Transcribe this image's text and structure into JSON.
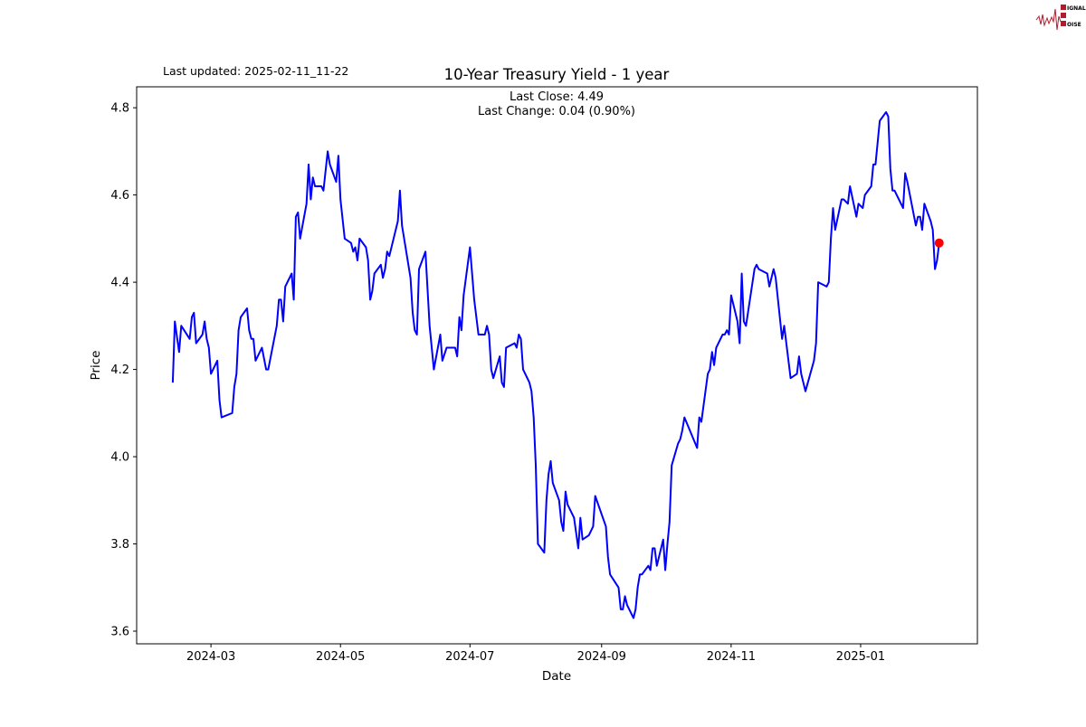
{
  "logo": {
    "text": "SIGNAL 2 NOISE",
    "color": "#b01c2e"
  },
  "last_updated": "Last updated: 2025-02-11_11-22",
  "chart_data": {
    "type": "line",
    "title": "10-Year Treasury Yield - 1 year",
    "xlabel": "Date",
    "ylabel": "Price",
    "annotation": {
      "last_close": "Last Close: 4.49",
      "last_change": "Last Change: 0.04 (0.90%)"
    },
    "xlim": [
      "2024-01-26",
      "2025-02-25"
    ],
    "ylim": [
      3.571,
      4.848
    ],
    "x_ticks": [
      "2024-03",
      "2024-05",
      "2024-07",
      "2024-09",
      "2024-11",
      "2025-01"
    ],
    "y_ticks": [
      "3.6",
      "3.8",
      "4.0",
      "4.2",
      "4.4",
      "4.6",
      "4.8"
    ],
    "grid": false,
    "line_color": "#0000ff",
    "marker": {
      "date": "2025-02-07",
      "value": 4.49,
      "color": "#ff0000"
    },
    "points": [
      [
        "2024-02-12",
        4.17
      ],
      [
        "2024-02-13",
        4.31
      ],
      [
        "2024-02-15",
        4.24
      ],
      [
        "2024-02-16",
        4.3
      ],
      [
        "2024-02-20",
        4.27
      ],
      [
        "2024-02-21",
        4.32
      ],
      [
        "2024-02-22",
        4.33
      ],
      [
        "2024-02-23",
        4.26
      ],
      [
        "2024-02-26",
        4.28
      ],
      [
        "2024-02-27",
        4.31
      ],
      [
        "2024-02-28",
        4.27
      ],
      [
        "2024-02-29",
        4.25
      ],
      [
        "2024-03-01",
        4.19
      ],
      [
        "2024-03-04",
        4.22
      ],
      [
        "2024-03-05",
        4.13
      ],
      [
        "2024-03-06",
        4.09
      ],
      [
        "2024-03-11",
        4.1
      ],
      [
        "2024-03-12",
        4.16
      ],
      [
        "2024-03-13",
        4.19
      ],
      [
        "2024-03-14",
        4.29
      ],
      [
        "2024-03-15",
        4.32
      ],
      [
        "2024-03-18",
        4.34
      ],
      [
        "2024-03-19",
        4.29
      ],
      [
        "2024-03-20",
        4.27
      ],
      [
        "2024-03-21",
        4.27
      ],
      [
        "2024-03-22",
        4.22
      ],
      [
        "2024-03-25",
        4.25
      ],
      [
        "2024-03-27",
        4.2
      ],
      [
        "2024-03-28",
        4.2
      ],
      [
        "2024-04-01",
        4.3
      ],
      [
        "2024-04-02",
        4.36
      ],
      [
        "2024-04-03",
        4.36
      ],
      [
        "2024-04-04",
        4.31
      ],
      [
        "2024-04-05",
        4.39
      ],
      [
        "2024-04-08",
        4.42
      ],
      [
        "2024-04-09",
        4.36
      ],
      [
        "2024-04-10",
        4.55
      ],
      [
        "2024-04-11",
        4.56
      ],
      [
        "2024-04-12",
        4.5
      ],
      [
        "2024-04-15",
        4.58
      ],
      [
        "2024-04-16",
        4.67
      ],
      [
        "2024-04-17",
        4.59
      ],
      [
        "2024-04-18",
        4.64
      ],
      [
        "2024-04-19",
        4.62
      ],
      [
        "2024-04-22",
        4.62
      ],
      [
        "2024-04-23",
        4.61
      ],
      [
        "2024-04-25",
        4.7
      ],
      [
        "2024-04-26",
        4.67
      ],
      [
        "2024-04-29",
        4.63
      ],
      [
        "2024-04-30",
        4.69
      ],
      [
        "2024-05-01",
        4.59
      ],
      [
        "2024-05-03",
        4.5
      ],
      [
        "2024-05-06",
        4.49
      ],
      [
        "2024-05-07",
        4.47
      ],
      [
        "2024-05-08",
        4.48
      ],
      [
        "2024-05-09",
        4.45
      ],
      [
        "2024-05-10",
        4.5
      ],
      [
        "2024-05-13",
        4.48
      ],
      [
        "2024-05-14",
        4.45
      ],
      [
        "2024-05-15",
        4.36
      ],
      [
        "2024-05-16",
        4.38
      ],
      [
        "2024-05-17",
        4.42
      ],
      [
        "2024-05-20",
        4.44
      ],
      [
        "2024-05-21",
        4.41
      ],
      [
        "2024-05-22",
        4.43
      ],
      [
        "2024-05-23",
        4.47
      ],
      [
        "2024-05-24",
        4.46
      ],
      [
        "2024-05-28",
        4.54
      ],
      [
        "2024-05-29",
        4.61
      ],
      [
        "2024-05-30",
        4.53
      ],
      [
        "2024-06-03",
        4.41
      ],
      [
        "2024-06-04",
        4.33
      ],
      [
        "2024-06-05",
        4.29
      ],
      [
        "2024-06-06",
        4.28
      ],
      [
        "2024-06-07",
        4.43
      ],
      [
        "2024-06-10",
        4.47
      ],
      [
        "2024-06-12",
        4.3
      ],
      [
        "2024-06-14",
        4.2
      ],
      [
        "2024-06-17",
        4.28
      ],
      [
        "2024-06-18",
        4.22
      ],
      [
        "2024-06-20",
        4.25
      ],
      [
        "2024-06-24",
        4.25
      ],
      [
        "2024-06-25",
        4.23
      ],
      [
        "2024-06-26",
        4.32
      ],
      [
        "2024-06-27",
        4.29
      ],
      [
        "2024-06-28",
        4.37
      ],
      [
        "2024-07-01",
        4.48
      ],
      [
        "2024-07-03",
        4.36
      ],
      [
        "2024-07-05",
        4.28
      ],
      [
        "2024-07-08",
        4.28
      ],
      [
        "2024-07-09",
        4.3
      ],
      [
        "2024-07-10",
        4.28
      ],
      [
        "2024-07-11",
        4.2
      ],
      [
        "2024-07-12",
        4.18
      ],
      [
        "2024-07-15",
        4.23
      ],
      [
        "2024-07-16",
        4.17
      ],
      [
        "2024-07-17",
        4.16
      ],
      [
        "2024-07-18",
        4.25
      ],
      [
        "2024-07-22",
        4.26
      ],
      [
        "2024-07-23",
        4.25
      ],
      [
        "2024-07-24",
        4.28
      ],
      [
        "2024-07-25",
        4.27
      ],
      [
        "2024-07-26",
        4.2
      ],
      [
        "2024-07-29",
        4.17
      ],
      [
        "2024-07-30",
        4.15
      ],
      [
        "2024-07-31",
        4.09
      ],
      [
        "2024-08-01",
        3.98
      ],
      [
        "2024-08-02",
        3.8
      ],
      [
        "2024-08-05",
        3.78
      ],
      [
        "2024-08-06",
        3.9
      ],
      [
        "2024-08-07",
        3.96
      ],
      [
        "2024-08-08",
        3.99
      ],
      [
        "2024-08-09",
        3.94
      ],
      [
        "2024-08-12",
        3.9
      ],
      [
        "2024-08-13",
        3.85
      ],
      [
        "2024-08-14",
        3.83
      ],
      [
        "2024-08-15",
        3.92
      ],
      [
        "2024-08-16",
        3.89
      ],
      [
        "2024-08-19",
        3.86
      ],
      [
        "2024-08-21",
        3.79
      ],
      [
        "2024-08-22",
        3.86
      ],
      [
        "2024-08-23",
        3.81
      ],
      [
        "2024-08-26",
        3.82
      ],
      [
        "2024-08-28",
        3.84
      ],
      [
        "2024-08-29",
        3.91
      ],
      [
        "2024-09-03",
        3.84
      ],
      [
        "2024-09-04",
        3.77
      ],
      [
        "2024-09-05",
        3.73
      ],
      [
        "2024-09-09",
        3.7
      ],
      [
        "2024-09-10",
        3.65
      ],
      [
        "2024-09-11",
        3.65
      ],
      [
        "2024-09-12",
        3.68
      ],
      [
        "2024-09-13",
        3.66
      ],
      [
        "2024-09-16",
        3.63
      ],
      [
        "2024-09-17",
        3.65
      ],
      [
        "2024-09-18",
        3.7
      ],
      [
        "2024-09-19",
        3.73
      ],
      [
        "2024-09-20",
        3.73
      ],
      [
        "2024-09-23",
        3.75
      ],
      [
        "2024-09-24",
        3.74
      ],
      [
        "2024-09-25",
        3.79
      ],
      [
        "2024-09-26",
        3.79
      ],
      [
        "2024-09-27",
        3.75
      ],
      [
        "2024-09-30",
        3.81
      ],
      [
        "2024-10-01",
        3.74
      ],
      [
        "2024-10-02",
        3.8
      ],
      [
        "2024-10-03",
        3.85
      ],
      [
        "2024-10-04",
        3.98
      ],
      [
        "2024-10-07",
        4.03
      ],
      [
        "2024-10-08",
        4.04
      ],
      [
        "2024-10-09",
        4.06
      ],
      [
        "2024-10-10",
        4.09
      ],
      [
        "2024-10-16",
        4.02
      ],
      [
        "2024-10-17",
        4.09
      ],
      [
        "2024-10-18",
        4.08
      ],
      [
        "2024-10-21",
        4.19
      ],
      [
        "2024-10-22",
        4.2
      ],
      [
        "2024-10-23",
        4.24
      ],
      [
        "2024-10-24",
        4.21
      ],
      [
        "2024-10-25",
        4.25
      ],
      [
        "2024-10-28",
        4.28
      ],
      [
        "2024-10-29",
        4.28
      ],
      [
        "2024-10-30",
        4.29
      ],
      [
        "2024-10-31",
        4.28
      ],
      [
        "2024-11-01",
        4.37
      ],
      [
        "2024-11-04",
        4.31
      ],
      [
        "2024-11-05",
        4.26
      ],
      [
        "2024-11-06",
        4.42
      ],
      [
        "2024-11-07",
        4.31
      ],
      [
        "2024-11-08",
        4.3
      ],
      [
        "2024-11-12",
        4.43
      ],
      [
        "2024-11-13",
        4.44
      ],
      [
        "2024-11-14",
        4.43
      ],
      [
        "2024-11-18",
        4.42
      ],
      [
        "2024-11-19",
        4.39
      ],
      [
        "2024-11-21",
        4.43
      ],
      [
        "2024-11-22",
        4.41
      ],
      [
        "2024-11-25",
        4.27
      ],
      [
        "2024-11-26",
        4.3
      ],
      [
        "2024-11-29",
        4.18
      ],
      [
        "2024-12-02",
        4.19
      ],
      [
        "2024-12-03",
        4.23
      ],
      [
        "2024-12-04",
        4.19
      ],
      [
        "2024-12-06",
        4.15
      ],
      [
        "2024-12-10",
        4.22
      ],
      [
        "2024-12-11",
        4.26
      ],
      [
        "2024-12-12",
        4.4
      ],
      [
        "2024-12-16",
        4.39
      ],
      [
        "2024-12-17",
        4.4
      ],
      [
        "2024-12-18",
        4.5
      ],
      [
        "2024-12-19",
        4.57
      ],
      [
        "2024-12-20",
        4.52
      ],
      [
        "2024-12-23",
        4.59
      ],
      [
        "2024-12-24",
        4.59
      ],
      [
        "2024-12-26",
        4.58
      ],
      [
        "2024-12-27",
        4.62
      ],
      [
        "2024-12-30",
        4.55
      ],
      [
        "2024-12-31",
        4.58
      ],
      [
        "2025-01-02",
        4.57
      ],
      [
        "2025-01-03",
        4.6
      ],
      [
        "2025-01-06",
        4.62
      ],
      [
        "2025-01-07",
        4.67
      ],
      [
        "2025-01-08",
        4.67
      ],
      [
        "2025-01-10",
        4.77
      ],
      [
        "2025-01-13",
        4.79
      ],
      [
        "2025-01-14",
        4.78
      ],
      [
        "2025-01-15",
        4.66
      ],
      [
        "2025-01-16",
        4.61
      ],
      [
        "2025-01-17",
        4.61
      ],
      [
        "2025-01-21",
        4.57
      ],
      [
        "2025-01-22",
        4.65
      ],
      [
        "2025-01-23",
        4.63
      ],
      [
        "2025-01-27",
        4.53
      ],
      [
        "2025-01-28",
        4.55
      ],
      [
        "2025-01-29",
        4.55
      ],
      [
        "2025-01-30",
        4.52
      ],
      [
        "2025-01-31",
        4.58
      ],
      [
        "2025-02-03",
        4.54
      ],
      [
        "2025-02-04",
        4.52
      ],
      [
        "2025-02-05",
        4.43
      ],
      [
        "2025-02-06",
        4.45
      ],
      [
        "2025-02-07",
        4.49
      ]
    ]
  }
}
